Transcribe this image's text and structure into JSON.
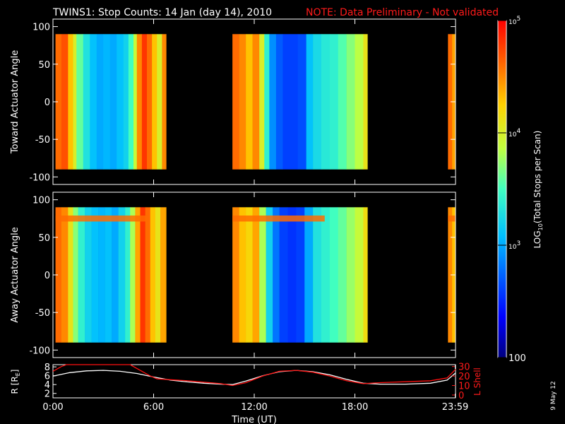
{
  "header": {
    "title": "TWINS1: Stop Counts: 14 Jan (day  14), 2010",
    "note": "NOTE: Data Preliminary - Not validated",
    "note_color": "#ff2020"
  },
  "stamp": "9 May 12",
  "chart_data": [
    {
      "type": "heatmap",
      "ylabel": "Toward Actuator Angle",
      "ylim": [
        -110,
        110
      ],
      "yticks": [
        "100",
        "50",
        "0",
        "-50",
        "-100"
      ],
      "ytick_values": [
        100,
        50,
        0,
        -50,
        -100
      ],
      "xlim_hours": [
        0,
        24
      ],
      "angle_range": [
        -90,
        90
      ],
      "segments": [
        {
          "start": 0.15,
          "end": 6.75,
          "columns": [
            {
              "t": 0.15,
              "v": 4.6
            },
            {
              "t": 0.5,
              "v": 4.7
            },
            {
              "t": 0.9,
              "v": 4.3
            },
            {
              "t": 1.2,
              "v": 4.0
            },
            {
              "t": 1.4,
              "v": 3.6
            },
            {
              "t": 1.8,
              "v": 3.3
            },
            {
              "t": 2.2,
              "v": 3.1
            },
            {
              "t": 2.6,
              "v": 3.0
            },
            {
              "t": 3.0,
              "v": 3.05
            },
            {
              "t": 3.4,
              "v": 3.0
            },
            {
              "t": 3.8,
              "v": 3.1
            },
            {
              "t": 4.2,
              "v": 3.2
            },
            {
              "t": 4.5,
              "v": 3.5
            },
            {
              "t": 4.8,
              "v": 3.9
            },
            {
              "t": 5.0,
              "v": 4.5
            },
            {
              "t": 5.3,
              "v": 4.8
            },
            {
              "t": 5.6,
              "v": 4.6
            },
            {
              "t": 5.9,
              "v": 4.3
            },
            {
              "t": 6.2,
              "v": 4.0
            },
            {
              "t": 6.5,
              "v": 4.5
            }
          ]
        },
        {
          "start": 10.7,
          "end": 18.75,
          "columns": [
            {
              "t": 10.7,
              "v": 4.6
            },
            {
              "t": 11.1,
              "v": 4.5
            },
            {
              "t": 11.5,
              "v": 4.3
            },
            {
              "t": 11.9,
              "v": 4.5
            },
            {
              "t": 12.3,
              "v": 4.0
            },
            {
              "t": 12.6,
              "v": 3.4
            },
            {
              "t": 12.9,
              "v": 2.9
            },
            {
              "t": 13.3,
              "v": 2.7
            },
            {
              "t": 13.7,
              "v": 2.6
            },
            {
              "t": 14.1,
              "v": 2.6
            },
            {
              "t": 14.6,
              "v": 2.65
            },
            {
              "t": 15.1,
              "v": 3.1
            },
            {
              "t": 15.5,
              "v": 3.25
            },
            {
              "t": 16.0,
              "v": 3.35
            },
            {
              "t": 16.5,
              "v": 3.4
            },
            {
              "t": 17.0,
              "v": 3.55
            },
            {
              "t": 17.5,
              "v": 3.7
            },
            {
              "t": 18.0,
              "v": 3.85
            },
            {
              "t": 18.5,
              "v": 4.1
            }
          ]
        },
        {
          "start": 23.55,
          "end": 24.0,
          "columns": [
            {
              "t": 23.55,
              "v": 4.6
            },
            {
              "t": 23.8,
              "v": 4.4
            }
          ]
        }
      ]
    },
    {
      "type": "heatmap",
      "ylabel": "Away Actuator Angle",
      "ylim": [
        -110,
        110
      ],
      "yticks": [
        "100",
        "50",
        "0",
        "-50",
        "-100"
      ],
      "ytick_values": [
        100,
        50,
        0,
        -50,
        -100
      ],
      "xlim_hours": [
        0,
        24
      ],
      "angle_range": [
        -90,
        90
      ],
      "band": {
        "angle": 75,
        "width": 8,
        "v": 4.6
      },
      "segments": [
        {
          "start": 0.15,
          "end": 6.75,
          "columns": [
            {
              "t": 0.15,
              "v": 4.6
            },
            {
              "t": 0.5,
              "v": 4.5
            },
            {
              "t": 0.9,
              "v": 4.1
            },
            {
              "t": 1.2,
              "v": 3.7
            },
            {
              "t": 1.5,
              "v": 3.4
            },
            {
              "t": 1.9,
              "v": 3.2
            },
            {
              "t": 2.3,
              "v": 3.1
            },
            {
              "t": 2.7,
              "v": 3.05
            },
            {
              "t": 3.1,
              "v": 3.1
            },
            {
              "t": 3.5,
              "v": 3.0
            },
            {
              "t": 3.9,
              "v": 3.2
            },
            {
              "t": 4.3,
              "v": 3.4
            },
            {
              "t": 4.6,
              "v": 3.8
            },
            {
              "t": 4.9,
              "v": 4.4
            },
            {
              "t": 5.2,
              "v": 4.8
            },
            {
              "t": 5.5,
              "v": 4.6
            },
            {
              "t": 5.8,
              "v": 4.3
            },
            {
              "t": 6.1,
              "v": 4.1
            },
            {
              "t": 6.4,
              "v": 4.4
            }
          ]
        },
        {
          "start": 10.7,
          "end": 18.75,
          "columns": [
            {
              "t": 10.7,
              "v": 4.5
            },
            {
              "t": 11.1,
              "v": 4.3
            },
            {
              "t": 11.5,
              "v": 4.2
            },
            {
              "t": 11.9,
              "v": 4.4
            },
            {
              "t": 12.3,
              "v": 3.8
            },
            {
              "t": 12.7,
              "v": 3.2
            },
            {
              "t": 13.1,
              "v": 2.8
            },
            {
              "t": 13.5,
              "v": 2.6
            },
            {
              "t": 14.0,
              "v": 2.55
            },
            {
              "t": 14.5,
              "v": 2.6
            },
            {
              "t": 15.0,
              "v": 3.0
            },
            {
              "t": 15.5,
              "v": 3.3
            },
            {
              "t": 16.0,
              "v": 3.4
            },
            {
              "t": 16.5,
              "v": 3.5
            },
            {
              "t": 17.0,
              "v": 3.6
            },
            {
              "t": 17.5,
              "v": 3.75
            },
            {
              "t": 18.0,
              "v": 3.9
            },
            {
              "t": 18.5,
              "v": 4.15
            }
          ]
        },
        {
          "start": 23.55,
          "end": 24.0,
          "columns": [
            {
              "t": 23.55,
              "v": 4.5
            },
            {
              "t": 23.8,
              "v": 4.3
            }
          ]
        }
      ]
    },
    {
      "type": "line",
      "ylabel_left": "R [R",
      "ylabel_left_sub": "E",
      "ylabel_left_close": "]",
      "ylabel_right": "L Shell",
      "yticks_left": [
        "8",
        "6",
        "4",
        "2"
      ],
      "ytick_values_left": [
        8,
        6,
        4,
        2
      ],
      "ylim_left": [
        1,
        8.5
      ],
      "yticks_right": [
        "30",
        "20",
        "10",
        "0"
      ],
      "ytick_values_right": [
        30,
        20,
        10,
        0
      ],
      "ylim_right": [
        -3,
        32
      ],
      "xticks": [
        "0:00",
        "6:00",
        "12:00",
        "18:00",
        "23:59"
      ],
      "xtick_values": [
        0,
        6,
        12,
        18,
        23.98
      ],
      "xlabel": "Time (UT)",
      "series": [
        {
          "color": "#ffffff",
          "axis": "left",
          "x": [
            0,
            1,
            2,
            3,
            4,
            5,
            6,
            7,
            8,
            9,
            10,
            10.7,
            11.5,
            12.5,
            13.5,
            14.5,
            15.5,
            16.5,
            17.5,
            18.5,
            19.5,
            21,
            22.5,
            23.5,
            24
          ],
          "y": [
            5.9,
            6.7,
            7.1,
            7.2,
            7.0,
            6.5,
            5.7,
            5.0,
            4.6,
            4.3,
            4.1,
            4.0,
            4.8,
            6.0,
            6.9,
            7.2,
            6.9,
            6.2,
            5.2,
            4.3,
            4.1,
            4.1,
            4.3,
            5.0,
            6.6
          ]
        },
        {
          "color": "#ff1010",
          "axis": "right",
          "x": [
            0,
            0.5,
            0.8,
            4.6,
            5.0,
            5.8,
            6.2,
            8,
            10,
            10.7,
            11.5,
            12.5,
            13.5,
            14.5,
            15.5,
            16.5,
            17.5,
            18.5,
            19.5,
            21,
            22.5,
            23.5,
            24
          ],
          "y": [
            25,
            30,
            32,
            32,
            28,
            20,
            17,
            15,
            12,
            10,
            13,
            20,
            25,
            26,
            24,
            20,
            15,
            12,
            13,
            14,
            15,
            18,
            27
          ]
        }
      ]
    }
  ],
  "colorbar": {
    "label_prefix": "LOG",
    "label_sub": "10",
    "label_suffix": "(Total Stops per Scan)",
    "ticks": [
      {
        "value": 5,
        "base": "10",
        "exp": "5"
      },
      {
        "value": 4,
        "base": "10",
        "exp": "4"
      },
      {
        "value": 3,
        "base": "10",
        "exp": "3"
      },
      {
        "value": 2,
        "base": "100",
        "exp": ""
      }
    ],
    "vmin": 2,
    "vmax": 5
  }
}
